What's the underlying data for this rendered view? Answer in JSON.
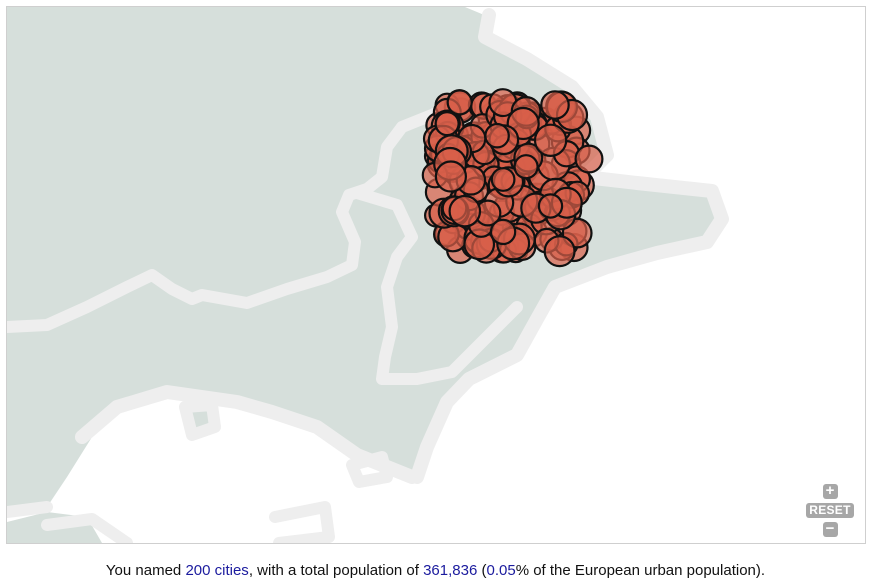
{
  "map": {
    "land_color": "#d6dfdb",
    "border_color": "#eeeeee",
    "sea_color": "#ffffff",
    "marker_fill": "#d9604a",
    "marker_stroke": "#111111"
  },
  "controls": {
    "zoom_in_label": "+",
    "reset_label": "RESET",
    "zoom_out_label": "−"
  },
  "caption": {
    "prefix": "You named ",
    "cities_link": "200 cities",
    "middle": ", with a total population of ",
    "population": "361,836",
    "paren_open": " (",
    "percent": "0.05",
    "suffix": "% of the European urban population)."
  }
}
